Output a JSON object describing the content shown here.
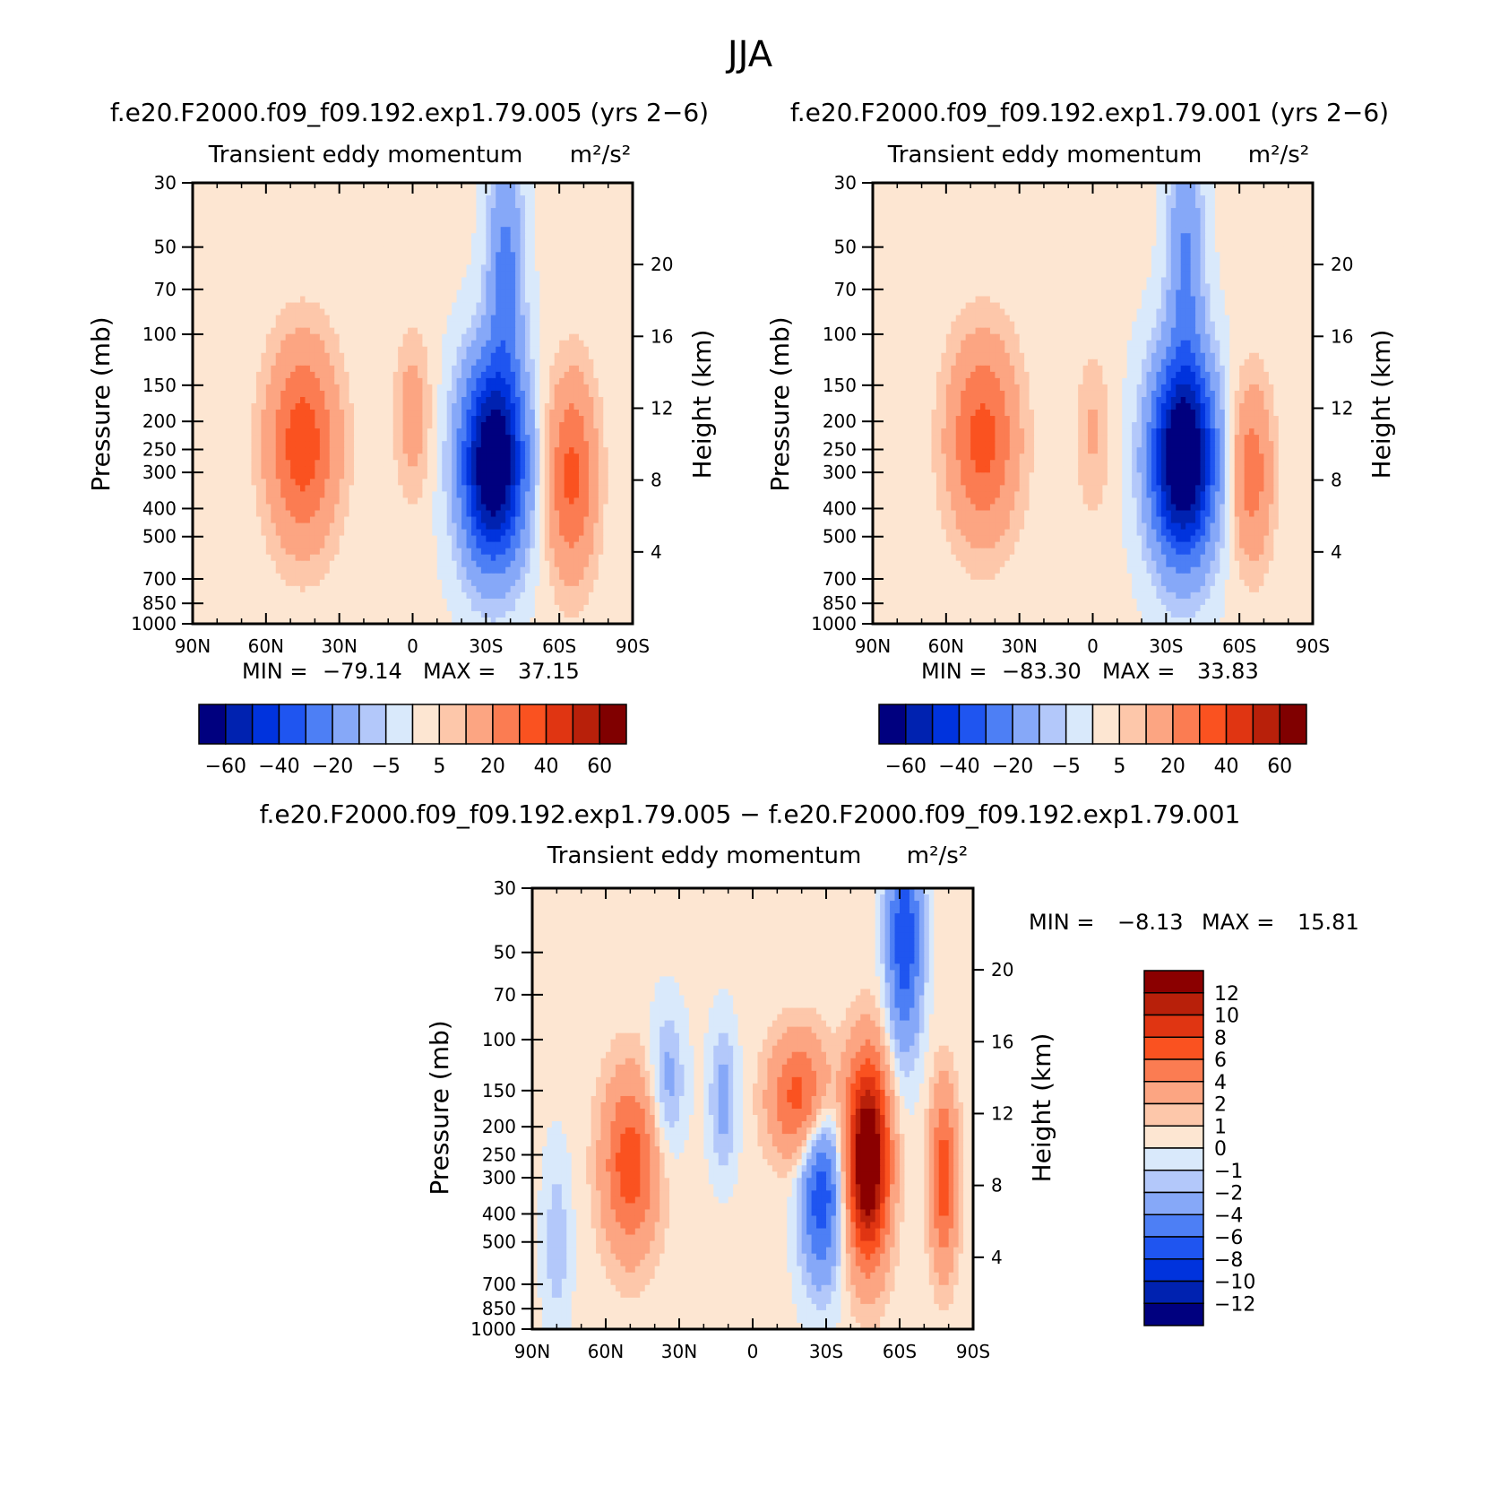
{
  "figure": {
    "season": "JJA"
  },
  "colors": {
    "fullfield": [
      "#00007f",
      "#0022b0",
      "#0033dd",
      "#1f55f0",
      "#4d7ff5",
      "#86a8f8",
      "#b3c8fa",
      "#d9e9fb",
      "#fde6d2",
      "#fdc7aa",
      "#fca582",
      "#fb7c52",
      "#fa5220",
      "#e03512",
      "#b8200a",
      "#800000"
    ],
    "difference": [
      "#00007f",
      "#0022b0",
      "#0033dd",
      "#1f55f0",
      "#4d7ff5",
      "#86a8f8",
      "#b3c8fa",
      "#d9e9fb",
      "#fde6d2",
      "#fdc7aa",
      "#fca582",
      "#fb7c52",
      "#fa5220",
      "#e03512",
      "#b8200a",
      "#8b0000"
    ]
  },
  "chart_data": [
    {
      "type": "heatmap",
      "panel": "top-left",
      "title": "f.e20.F2000.f09_f09.192.exp1.79.005 (yrs 2−6)",
      "subtitle": "Transient eddy momentum",
      "units": "m²/s²",
      "xlabel": "",
      "ylabel": "Pressure (mb)",
      "ylabel_right": "Height (km)",
      "x_ticks": [
        "90N",
        "60N",
        "30N",
        "0",
        "30S",
        "60S",
        "90S"
      ],
      "y_ticks": [
        30,
        50,
        70,
        100,
        150,
        200,
        250,
        300,
        400,
        500,
        700,
        850,
        1000
      ],
      "y_ticks_right": [
        4,
        8,
        12,
        16,
        20
      ],
      "ylim": [
        1000,
        30
      ],
      "y_scale": "log",
      "stats": {
        "min_label": "MIN =",
        "min": "−79.14",
        "max_label": "MAX =",
        "max": "37.15"
      },
      "colorbar": {
        "orientation": "horizontal",
        "labels": [
          "−60",
          "−40",
          "−20",
          "−5",
          "5",
          "20",
          "40",
          "60"
        ]
      },
      "features": [
        {
          "lat": 45,
          "p": 240,
          "value": 36,
          "spread_lat": 10,
          "spread_p": 0.55
        },
        {
          "lat": 0,
          "p": 190,
          "value": 14,
          "spread_lat": 5,
          "spread_p": 0.45
        },
        {
          "lat": -33,
          "p": 280,
          "value": -79,
          "spread_lat": 9,
          "spread_p": 0.55
        },
        {
          "lat": -38,
          "p": 60,
          "value": -25,
          "spread_lat": 5,
          "spread_p": 0.6
        },
        {
          "lat": -65,
          "p": 310,
          "value": 32,
          "spread_lat": 7,
          "spread_p": 0.55
        }
      ]
    },
    {
      "type": "heatmap",
      "panel": "top-right",
      "title": "f.e20.F2000.f09_f09.192.exp1.79.001 (yrs 2−6)",
      "subtitle": "Transient eddy momentum",
      "units": "m²/s²",
      "xlabel": "",
      "ylabel": "Pressure (mb)",
      "ylabel_right": "Height (km)",
      "x_ticks": [
        "90N",
        "60N",
        "30N",
        "0",
        "30S",
        "60S",
        "90S"
      ],
      "y_ticks": [
        30,
        50,
        70,
        100,
        150,
        200,
        250,
        300,
        400,
        500,
        700,
        850,
        1000
      ],
      "y_ticks_right": [
        4,
        8,
        12,
        16,
        20
      ],
      "ylim": [
        1000,
        30
      ],
      "y_scale": "log",
      "stats": {
        "min_label": "MIN =",
        "min": "−83.30",
        "max_label": "MAX =",
        "max": "33.83"
      },
      "colorbar": {
        "orientation": "horizontal",
        "labels": [
          "−60",
          "−40",
          "−20",
          "−5",
          "5",
          "20",
          "40",
          "60"
        ]
      },
      "features": [
        {
          "lat": 45,
          "p": 230,
          "value": 33,
          "spread_lat": 10,
          "spread_p": 0.55
        },
        {
          "lat": 0,
          "p": 220,
          "value": 10,
          "spread_lat": 5,
          "spread_p": 0.45
        },
        {
          "lat": -37,
          "p": 270,
          "value": -83,
          "spread_lat": 9,
          "spread_p": 0.55
        },
        {
          "lat": -38,
          "p": 55,
          "value": -22,
          "spread_lat": 5,
          "spread_p": 0.6
        },
        {
          "lat": -65,
          "p": 300,
          "value": 25,
          "spread_lat": 6,
          "spread_p": 0.5
        }
      ]
    },
    {
      "type": "heatmap",
      "panel": "bottom",
      "title": "f.e20.F2000.f09_f09.192.exp1.79.005 − f.e20.F2000.f09_f09.192.exp1.79.001",
      "subtitle": "Transient eddy momentum",
      "units": "m²/s²",
      "xlabel": "",
      "ylabel": "Pressure (mb)",
      "ylabel_right": "Height (km)",
      "x_ticks": [
        "90N",
        "60N",
        "30N",
        "0",
        "30S",
        "60S",
        "90S"
      ],
      "y_ticks": [
        30,
        50,
        70,
        100,
        150,
        200,
        250,
        300,
        400,
        500,
        700,
        850,
        1000
      ],
      "y_ticks_right": [
        4,
        8,
        12,
        16,
        20
      ],
      "ylim": [
        1000,
        30
      ],
      "y_scale": "log",
      "stats": {
        "min_label": "MIN =",
        "min": "−8.13",
        "max_label": "MAX =",
        "max": "15.81"
      },
      "colorbar": {
        "orientation": "vertical",
        "labels": [
          "12",
          "10",
          "8",
          "6",
          "4",
          "2",
          "1",
          "0",
          "−1",
          "−2",
          "−4",
          "−6",
          "−8",
          "−10",
          "−12"
        ]
      },
      "features": [
        {
          "lat": 50,
          "p": 270,
          "value": 7,
          "spread_lat": 8,
          "spread_p": 0.5
        },
        {
          "lat": 35,
          "p": 140,
          "value": -3,
          "spread_lat": 5,
          "spread_p": 0.4
        },
        {
          "lat": 12,
          "p": 160,
          "value": -3,
          "spread_lat": 4,
          "spread_p": 0.4
        },
        {
          "lat": -28,
          "p": 330,
          "value": -8,
          "spread_lat": 6,
          "spread_p": 0.5
        },
        {
          "lat": -47,
          "p": 260,
          "value": 15.8,
          "spread_lat": 6,
          "spread_p": 0.55
        },
        {
          "lat": -20,
          "p": 160,
          "value": 7,
          "spread_lat": 9,
          "spread_p": 0.35
        },
        {
          "lat": -62,
          "p": 45,
          "value": -8,
          "spread_lat": 5,
          "spread_p": 0.6
        },
        {
          "lat": -78,
          "p": 300,
          "value": 7,
          "spread_lat": 4,
          "spread_p": 0.5
        },
        {
          "lat": 80,
          "p": 500,
          "value": -2,
          "spread_lat": 4,
          "spread_p": 0.5
        }
      ]
    }
  ]
}
